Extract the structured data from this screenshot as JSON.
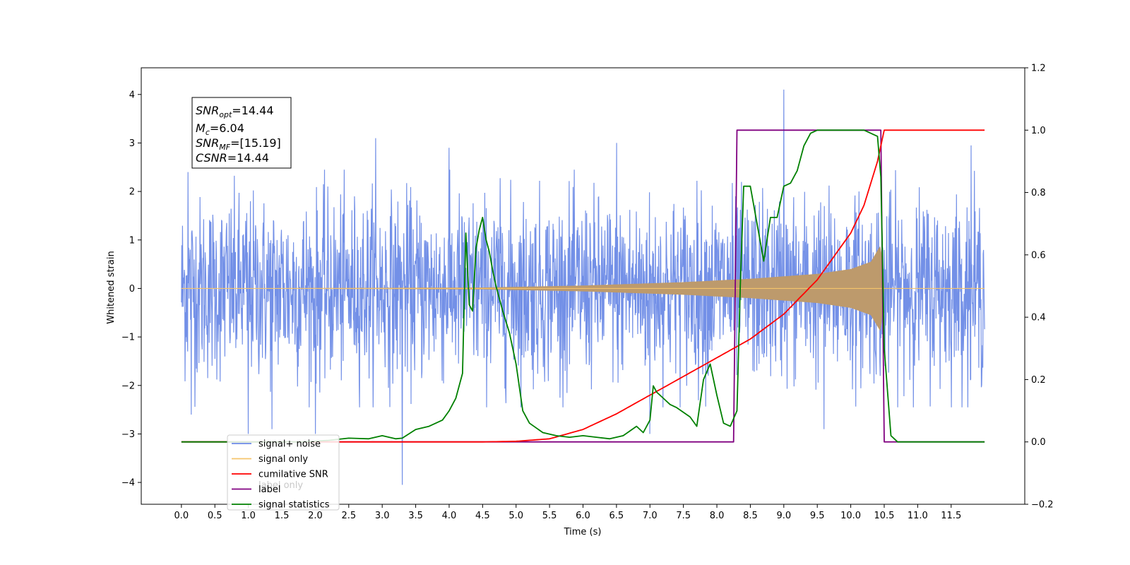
{
  "chart_data": {
    "type": "line",
    "xlabel": "Time (s)",
    "ylabel": "Whitened strain",
    "ylabel_right": "",
    "xlim": [
      -0.6,
      12.6
    ],
    "ylim": [
      -4.45,
      4.55
    ],
    "ylim_right": [
      -0.2,
      1.2
    ],
    "x_ticks": [
      "0.0",
      "0.5",
      "1.0",
      "1.5",
      "2.0",
      "2.5",
      "3.0",
      "3.5",
      "4.0",
      "4.5",
      "5.0",
      "5.5",
      "6.0",
      "6.5",
      "7.0",
      "7.5",
      "8.0",
      "8.5",
      "9.0",
      "9.5",
      "10.0",
      "10.5",
      "11.0",
      "11.5"
    ],
    "y_ticks": [
      "4",
      "3",
      "2",
      "1",
      "0",
      "−1",
      "−2",
      "−3",
      "−4"
    ],
    "y_ticks_right": [
      "1.2",
      "1.0",
      "0.8",
      "0.6",
      "0.4",
      "0.2",
      "0.0",
      "−0.2"
    ],
    "annotation": {
      "snr_opt_sym": "SNR",
      "snr_opt_sub": "opt",
      "snr_opt_val": "=14.44",
      "mc_sym": "M",
      "mc_sub": "c",
      "mc_val": "=6.04",
      "snr_mf_sym": "SNR",
      "snr_mf_sub": "MF",
      "snr_mf_val": "=[15.19]",
      "csnr_sym": "CSNR",
      "csnr_val": "=14.44"
    },
    "legend": {
      "position": "lower-left",
      "entries": [
        {
          "label": "signal+ noise",
          "color": "#6b8ae6"
        },
        {
          "label": "signal only",
          "color": "#f5c46b"
        },
        {
          "label": "cumilative SNR",
          "color": "#ff0000"
        },
        {
          "label": "label",
          "color": "#800080"
        },
        {
          "label": "signal statistics",
          "color": "#008000"
        }
      ],
      "ghost_label": "label only"
    },
    "series": [
      {
        "name": "signal+ noise",
        "axis": "left",
        "color": "#6b8ae6",
        "x_range": [
          0.0,
          12.0
        ],
        "envelope_typical": 1.5,
        "spikes": [
          {
            "x": 0.1,
            "y": 2.4
          },
          {
            "x": 0.15,
            "y": -2.6
          },
          {
            "x": 1.0,
            "y": -3.0
          },
          {
            "x": 1.35,
            "y": -2.9
          },
          {
            "x": 2.0,
            "y": -3.0
          },
          {
            "x": 2.9,
            "y": 3.1
          },
          {
            "x": 3.3,
            "y": -4.05
          },
          {
            "x": 4.0,
            "y": 2.9
          },
          {
            "x": 6.5,
            "y": 3.0
          },
          {
            "x": 7.0,
            "y": -3.0
          },
          {
            "x": 9.0,
            "y": 4.1
          },
          {
            "x": 9.6,
            "y": -2.9
          },
          {
            "x": 11.8,
            "y": 2.95
          }
        ]
      },
      {
        "name": "signal only",
        "axis": "left",
        "color": "#f5c46b",
        "description_of_envelope_points": [
          [
            0.0,
            0.0
          ],
          [
            4.5,
            0.02
          ],
          [
            6.0,
            0.06
          ],
          [
            7.5,
            0.13
          ],
          [
            8.5,
            0.2
          ],
          [
            9.5,
            0.3
          ],
          [
            10.0,
            0.4
          ],
          [
            10.3,
            0.55
          ],
          [
            10.45,
            0.9
          ],
          [
            10.5,
            0.0
          ],
          [
            12.0,
            0.0
          ]
        ]
      },
      {
        "name": "cumilative SNR",
        "axis": "right",
        "color": "#ff0000",
        "x": [
          0.0,
          4.5,
          5.0,
          5.5,
          6.0,
          6.5,
          7.0,
          7.5,
          8.0,
          8.5,
          9.0,
          9.5,
          10.0,
          10.2,
          10.4,
          10.5,
          12.0
        ],
        "y": [
          0.0,
          0.0,
          0.002,
          0.01,
          0.04,
          0.09,
          0.15,
          0.21,
          0.27,
          0.33,
          0.41,
          0.52,
          0.67,
          0.76,
          0.9,
          1.0,
          1.0
        ]
      },
      {
        "name": "label",
        "axis": "right",
        "color": "#800080",
        "x": [
          0.0,
          8.25,
          8.3,
          10.45,
          10.5,
          12.0
        ],
        "y": [
          0.0,
          0.0,
          1.0,
          1.0,
          0.0,
          0.0
        ]
      },
      {
        "name": "signal statistics",
        "axis": "right",
        "color": "#008000",
        "x": [
          0.0,
          0.9,
          1.8,
          2.2,
          2.5,
          2.8,
          3.0,
          3.2,
          3.3,
          3.5,
          3.7,
          3.8,
          3.9,
          4.0,
          4.1,
          4.2,
          4.25,
          4.3,
          4.35,
          4.4,
          4.45,
          4.5,
          4.55,
          4.6,
          4.65,
          4.7,
          4.8,
          4.9,
          5.0,
          5.1,
          5.2,
          5.4,
          5.6,
          5.8,
          6.0,
          6.2,
          6.4,
          6.6,
          6.8,
          6.9,
          7.0,
          7.05,
          7.1,
          7.2,
          7.3,
          7.4,
          7.6,
          7.7,
          7.8,
          7.9,
          8.0,
          8.1,
          8.2,
          8.3,
          8.35,
          8.4,
          8.5,
          8.6,
          8.7,
          8.8,
          8.9,
          9.0,
          9.1,
          9.2,
          9.3,
          9.4,
          9.5,
          9.8,
          10.0,
          10.2,
          10.4,
          10.45,
          10.5,
          10.6,
          10.7,
          12.0
        ],
        "y": [
          0.0,
          0.0,
          0.0,
          0.005,
          0.012,
          0.01,
          0.02,
          0.01,
          0.012,
          0.04,
          0.05,
          0.06,
          0.07,
          0.1,
          0.14,
          0.22,
          0.67,
          0.44,
          0.42,
          0.62,
          0.68,
          0.72,
          0.65,
          0.61,
          0.55,
          0.5,
          0.42,
          0.35,
          0.25,
          0.1,
          0.06,
          0.03,
          0.02,
          0.015,
          0.02,
          0.015,
          0.01,
          0.02,
          0.05,
          0.03,
          0.07,
          0.18,
          0.16,
          0.14,
          0.12,
          0.11,
          0.08,
          0.05,
          0.2,
          0.25,
          0.15,
          0.06,
          0.05,
          0.1,
          0.5,
          0.82,
          0.82,
          0.7,
          0.58,
          0.72,
          0.72,
          0.82,
          0.83,
          0.87,
          0.95,
          0.99,
          1.0,
          1.0,
          1.0,
          1.0,
          0.98,
          0.85,
          0.3,
          0.02,
          0.0,
          0.0
        ]
      }
    ]
  }
}
